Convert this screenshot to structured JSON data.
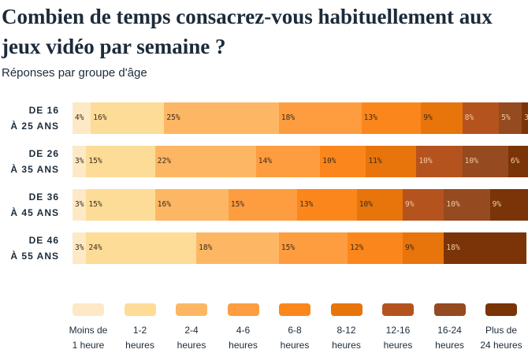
{
  "chart_data": {
    "type": "bar",
    "orientation": "horizontal-stacked-100",
    "title": "Combien de temps consacrez-vous habituellement aux jeux vidéo par semaine ?",
    "subtitle": "Réponses par groupe d'âge",
    "categories": [
      [
        "DE 16",
        "À 25 ANS"
      ],
      [
        "DE 26",
        "À 35 ANS"
      ],
      [
        "DE 36",
        "À 45 ANS"
      ],
      [
        "DE 46",
        "À 55 ANS"
      ]
    ],
    "series": [
      {
        "name": [
          "Moins de",
          "1 heure"
        ],
        "color": "#fde9c6",
        "values": [
          4,
          3,
          3,
          3
        ]
      },
      {
        "name": [
          "1-2",
          "heures"
        ],
        "color": "#fddc98",
        "values": [
          16,
          15,
          15,
          24
        ]
      },
      {
        "name": [
          "2-4",
          "heures"
        ],
        "color": "#fdb764",
        "values": [
          25,
          22,
          16,
          18
        ]
      },
      {
        "name": [
          "4-6",
          "heures"
        ],
        "color": "#fd9d40",
        "values": [
          18,
          14,
          15,
          15
        ]
      },
      {
        "name": [
          "6-8",
          "heures"
        ],
        "color": "#fb871c",
        "values": [
          13,
          10,
          13,
          12
        ]
      },
      {
        "name": [
          "8-12",
          "heures"
        ],
        "color": "#e8740c",
        "values": [
          9,
          11,
          10,
          9
        ]
      },
      {
        "name": [
          "12-16",
          "heures"
        ],
        "color": "#b5531f",
        "values": [
          8,
          10,
          9,
          0
        ]
      },
      {
        "name": [
          "16-24",
          "heures"
        ],
        "color": "#954a1f",
        "values": [
          5,
          10,
          10,
          0
        ]
      },
      {
        "name": [
          "Plus de",
          "24 heures"
        ],
        "color": "#7a3408",
        "values": [
          3,
          6,
          9,
          18
        ]
      }
    ],
    "value_suffix": "%",
    "legend_position": "bottom",
    "grid": false
  }
}
